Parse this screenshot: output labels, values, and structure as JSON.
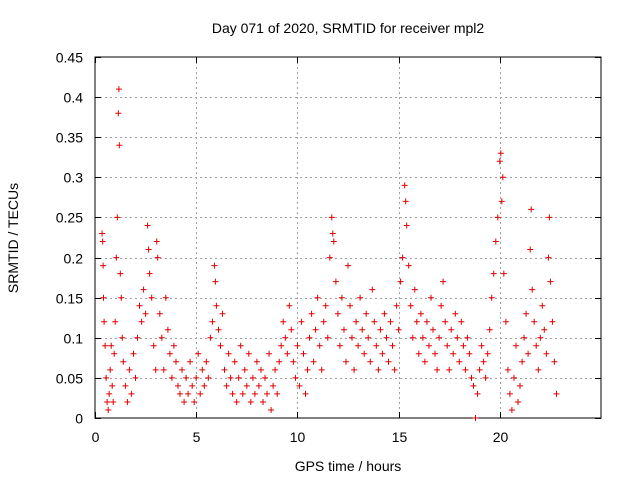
{
  "chart_data": {
    "type": "scatter",
    "title": "Day 071 of 2020, SRMTID for receiver mpl2",
    "xlabel": "GPS time / hours",
    "ylabel": "SRMTID / TECUs",
    "xlim": [
      0,
      25
    ],
    "ylim": [
      0,
      0.45
    ],
    "xticks": [
      0,
      5,
      10,
      15,
      20
    ],
    "xtick_labels": [
      "0",
      "5",
      "10",
      "15",
      "20"
    ],
    "yticks": [
      0,
      0.05,
      0.1,
      0.15,
      0.2,
      0.25,
      0.3,
      0.35,
      0.4,
      0.45
    ],
    "ytick_labels": [
      "0",
      "0.05",
      "0.1",
      "0.15",
      "0.2",
      "0.25",
      "0.3",
      "0.35",
      "0.4",
      "0.45"
    ],
    "grid": true,
    "marker": "+",
    "color": "#e00000",
    "series": [
      {
        "name": "mpl2",
        "points": [
          [
            0.35,
            0.23
          ],
          [
            0.38,
            0.22
          ],
          [
            0.4,
            0.19
          ],
          [
            0.42,
            0.15
          ],
          [
            0.45,
            0.12
          ],
          [
            0.5,
            0.09
          ],
          [
            0.55,
            0.05
          ],
          [
            0.6,
            0.02
          ],
          [
            0.65,
            0.01
          ],
          [
            0.7,
            0.03
          ],
          [
            0.75,
            0.06
          ],
          [
            0.8,
            0.09
          ],
          [
            0.85,
            0.04
          ],
          [
            0.9,
            0.02
          ],
          [
            0.95,
            0.08
          ],
          [
            1.0,
            0.12
          ],
          [
            1.05,
            0.2
          ],
          [
            1.1,
            0.25
          ],
          [
            1.15,
            0.38
          ],
          [
            1.18,
            0.41
          ],
          [
            1.2,
            0.34
          ],
          [
            1.25,
            0.18
          ],
          [
            1.3,
            0.15
          ],
          [
            1.35,
            0.1
          ],
          [
            1.4,
            0.07
          ],
          [
            1.5,
            0.04
          ],
          [
            1.6,
            0.02
          ],
          [
            1.7,
            0.06
          ],
          [
            1.8,
            0.03
          ],
          [
            1.9,
            0.08
          ],
          [
            2.0,
            0.05
          ],
          [
            2.1,
            0.1
          ],
          [
            2.2,
            0.14
          ],
          [
            2.3,
            0.12
          ],
          [
            2.4,
            0.16
          ],
          [
            2.5,
            0.13
          ],
          [
            2.6,
            0.24
          ],
          [
            2.65,
            0.21
          ],
          [
            2.7,
            0.18
          ],
          [
            2.8,
            0.15
          ],
          [
            2.9,
            0.09
          ],
          [
            3.0,
            0.06
          ],
          [
            3.05,
            0.22
          ],
          [
            3.1,
            0.2
          ],
          [
            3.2,
            0.13
          ],
          [
            3.3,
            0.1
          ],
          [
            3.4,
            0.06
          ],
          [
            3.5,
            0.15
          ],
          [
            3.6,
            0.11
          ],
          [
            3.7,
            0.08
          ],
          [
            3.8,
            0.05
          ],
          [
            3.9,
            0.09
          ],
          [
            4.0,
            0.07
          ],
          [
            4.1,
            0.04
          ],
          [
            4.2,
            0.03
          ],
          [
            4.3,
            0.06
          ],
          [
            4.4,
            0.02
          ],
          [
            4.5,
            0.05
          ],
          [
            4.6,
            0.03
          ],
          [
            4.7,
            0.07
          ],
          [
            4.8,
            0.04
          ],
          [
            4.9,
            0.02
          ],
          [
            5.0,
            0.05
          ],
          [
            5.1,
            0.08
          ],
          [
            5.2,
            0.03
          ],
          [
            5.3,
            0.06
          ],
          [
            5.4,
            0.04
          ],
          [
            5.5,
            0.07
          ],
          [
            5.6,
            0.05
          ],
          [
            5.7,
            0.1
          ],
          [
            5.8,
            0.12
          ],
          [
            5.9,
            0.19
          ],
          [
            5.95,
            0.17
          ],
          [
            6.0,
            0.14
          ],
          [
            6.1,
            0.11
          ],
          [
            6.2,
            0.09
          ],
          [
            6.3,
            0.13
          ],
          [
            6.4,
            0.06
          ],
          [
            6.5,
            0.04
          ],
          [
            6.6,
            0.08
          ],
          [
            6.7,
            0.05
          ],
          [
            6.8,
            0.03
          ],
          [
            6.9,
            0.07
          ],
          [
            7.0,
            0.02
          ],
          [
            7.1,
            0.05
          ],
          [
            7.2,
            0.09
          ],
          [
            7.3,
            0.03
          ],
          [
            7.4,
            0.06
          ],
          [
            7.5,
            0.04
          ],
          [
            7.6,
            0.08
          ],
          [
            7.7,
            0.02
          ],
          [
            7.8,
            0.05
          ],
          [
            7.9,
            0.03
          ],
          [
            8.0,
            0.07
          ],
          [
            8.1,
            0.04
          ],
          [
            8.2,
            0.06
          ],
          [
            8.3,
            0.02
          ],
          [
            8.4,
            0.05
          ],
          [
            8.5,
            0.03
          ],
          [
            8.6,
            0.08
          ],
          [
            8.7,
            0.01
          ],
          [
            8.8,
            0.04
          ],
          [
            8.9,
            0.06
          ],
          [
            9.0,
            0.03
          ],
          [
            9.1,
            0.07
          ],
          [
            9.2,
            0.09
          ],
          [
            9.3,
            0.12
          ],
          [
            9.4,
            0.1
          ],
          [
            9.5,
            0.08
          ],
          [
            9.6,
            0.14
          ],
          [
            9.7,
            0.11
          ],
          [
            9.8,
            0.07
          ],
          [
            9.9,
            0.05
          ],
          [
            10.0,
            0.09
          ],
          [
            10.1,
            0.04
          ],
          [
            10.2,
            0.12
          ],
          [
            10.3,
            0.08
          ],
          [
            10.4,
            0.03
          ],
          [
            10.5,
            0.06
          ],
          [
            10.6,
            0.1
          ],
          [
            10.7,
            0.13
          ],
          [
            10.8,
            0.07
          ],
          [
            10.9,
            0.11
          ],
          [
            11.0,
            0.15
          ],
          [
            11.1,
            0.09
          ],
          [
            11.2,
            0.06
          ],
          [
            11.3,
            0.12
          ],
          [
            11.4,
            0.14
          ],
          [
            11.5,
            0.1
          ],
          [
            11.6,
            0.2
          ],
          [
            11.7,
            0.25
          ],
          [
            11.75,
            0.23
          ],
          [
            11.8,
            0.22
          ],
          [
            11.9,
            0.17
          ],
          [
            12.0,
            0.13
          ],
          [
            12.1,
            0.09
          ],
          [
            12.2,
            0.15
          ],
          [
            12.3,
            0.11
          ],
          [
            12.4,
            0.07
          ],
          [
            12.5,
            0.19
          ],
          [
            12.6,
            0.14
          ],
          [
            12.7,
            0.1
          ],
          [
            12.8,
            0.06
          ],
          [
            12.9,
            0.12
          ],
          [
            13.0,
            0.09
          ],
          [
            13.1,
            0.15
          ],
          [
            13.2,
            0.11
          ],
          [
            13.3,
            0.08
          ],
          [
            13.4,
            0.13
          ],
          [
            13.5,
            0.1
          ],
          [
            13.6,
            0.07
          ],
          [
            13.7,
            0.16
          ],
          [
            13.8,
            0.12
          ],
          [
            13.9,
            0.09
          ],
          [
            14.0,
            0.06
          ],
          [
            14.1,
            0.11
          ],
          [
            14.2,
            0.08
          ],
          [
            14.3,
            0.13
          ],
          [
            14.4,
            0.1
          ],
          [
            14.5,
            0.07
          ],
          [
            14.6,
            0.12
          ],
          [
            14.7,
            0.09
          ],
          [
            14.8,
            0.06
          ],
          [
            14.9,
            0.14
          ],
          [
            15.0,
            0.11
          ],
          [
            15.1,
            0.17
          ],
          [
            15.2,
            0.2
          ],
          [
            15.3,
            0.29
          ],
          [
            15.35,
            0.27
          ],
          [
            15.4,
            0.24
          ],
          [
            15.5,
            0.19
          ],
          [
            15.6,
            0.14
          ],
          [
            15.7,
            0.1
          ],
          [
            15.8,
            0.16
          ],
          [
            15.9,
            0.12
          ],
          [
            16.0,
            0.08
          ],
          [
            16.1,
            0.13
          ],
          [
            16.2,
            0.1
          ],
          [
            16.3,
            0.07
          ],
          [
            16.4,
            0.12
          ],
          [
            16.5,
            0.09
          ],
          [
            16.6,
            0.15
          ],
          [
            16.7,
            0.11
          ],
          [
            16.8,
            0.08
          ],
          [
            16.9,
            0.06
          ],
          [
            17.0,
            0.1
          ],
          [
            17.1,
            0.14
          ],
          [
            17.2,
            0.17
          ],
          [
            17.3,
            0.12
          ],
          [
            17.4,
            0.09
          ],
          [
            17.5,
            0.06
          ],
          [
            17.6,
            0.11
          ],
          [
            17.7,
            0.08
          ],
          [
            17.8,
            0.13
          ],
          [
            17.9,
            0.1
          ],
          [
            18.0,
            0.07
          ],
          [
            18.1,
            0.12
          ],
          [
            18.2,
            0.09
          ],
          [
            18.3,
            0.06
          ],
          [
            18.4,
            0.1
          ],
          [
            18.5,
            0.08
          ],
          [
            18.6,
            0.05
          ],
          [
            18.7,
            0.04
          ],
          [
            18.8,
            0.0
          ],
          [
            18.9,
            0.03
          ],
          [
            19.0,
            0.06
          ],
          [
            19.1,
            0.09
          ],
          [
            19.2,
            0.07
          ],
          [
            19.3,
            0.05
          ],
          [
            19.4,
            0.08
          ],
          [
            19.5,
            0.11
          ],
          [
            19.6,
            0.15
          ],
          [
            19.7,
            0.18
          ],
          [
            19.8,
            0.22
          ],
          [
            19.9,
            0.25
          ],
          [
            20.0,
            0.32
          ],
          [
            20.05,
            0.33
          ],
          [
            20.1,
            0.27
          ],
          [
            20.15,
            0.3
          ],
          [
            20.2,
            0.18
          ],
          [
            20.3,
            0.12
          ],
          [
            20.4,
            0.06
          ],
          [
            20.5,
            0.03
          ],
          [
            20.6,
            0.01
          ],
          [
            20.7,
            0.05
          ],
          [
            20.8,
            0.09
          ],
          [
            20.9,
            0.02
          ],
          [
            21.0,
            0.04
          ],
          [
            21.1,
            0.07
          ],
          [
            21.2,
            0.1
          ],
          [
            21.3,
            0.13
          ],
          [
            21.4,
            0.08
          ],
          [
            21.5,
            0.21
          ],
          [
            21.55,
            0.26
          ],
          [
            21.6,
            0.16
          ],
          [
            21.7,
            0.12
          ],
          [
            21.8,
            0.09
          ],
          [
            21.9,
            0.06
          ],
          [
            22.0,
            0.1
          ],
          [
            22.1,
            0.14
          ],
          [
            22.2,
            0.11
          ],
          [
            22.3,
            0.08
          ],
          [
            22.4,
            0.2
          ],
          [
            22.45,
            0.25
          ],
          [
            22.5,
            0.17
          ],
          [
            22.6,
            0.12
          ],
          [
            22.7,
            0.07
          ],
          [
            22.8,
            0.03
          ]
        ]
      }
    ]
  }
}
